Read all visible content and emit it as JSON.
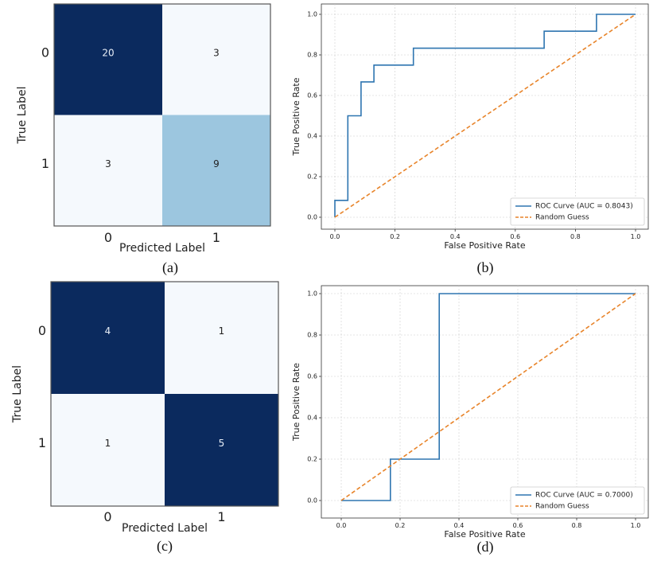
{
  "colors": {
    "dark": "#0b2a5e",
    "medium": "#9cc6df",
    "light": "#f5f9fd",
    "roc": "#2e75b0",
    "guess": "#e8842a",
    "grid": "#cccccc",
    "text_dark_cell": "#e8eef7",
    "text_light_cell": "#222222"
  },
  "chart_data": [
    {
      "type": "heatmap",
      "panel": "a",
      "caption": "(a)",
      "xlabel": "Predicted Label",
      "ylabel": "True Label",
      "x_ticks": [
        "0",
        "1"
      ],
      "y_ticks": [
        "0",
        "1"
      ],
      "matrix": [
        [
          20,
          3
        ],
        [
          3,
          9
        ]
      ]
    },
    {
      "type": "line",
      "panel": "b",
      "caption": "(b)",
      "xlabel": "False Positive Rate",
      "ylabel": "True Positive Rate",
      "xlim": [
        0,
        1
      ],
      "ylim": [
        0,
        1
      ],
      "x_ticks": [
        "0.0",
        "0.2",
        "0.4",
        "0.6",
        "0.8",
        "1.0"
      ],
      "y_ticks": [
        "0.0",
        "0.2",
        "0.4",
        "0.6",
        "0.8",
        "1.0"
      ],
      "grid": true,
      "legend_position": "bottom-right",
      "series": [
        {
          "name": "ROC Curve (AUC = 0.8043)",
          "style": "solid",
          "x": [
            0.0,
            0.0,
            0.043,
            0.043,
            0.087,
            0.087,
            0.13,
            0.13,
            0.261,
            0.261,
            0.696,
            0.696,
            0.87,
            0.87,
            1.0
          ],
          "y": [
            0.0,
            0.083,
            0.083,
            0.5,
            0.5,
            0.667,
            0.667,
            0.75,
            0.75,
            0.833,
            0.833,
            0.917,
            0.917,
            1.0,
            1.0
          ]
        },
        {
          "name": "Random Guess",
          "style": "dashed",
          "x": [
            0,
            1
          ],
          "y": [
            0,
            1
          ]
        }
      ]
    },
    {
      "type": "heatmap",
      "panel": "c",
      "caption": "(c)",
      "xlabel": "Predicted Label",
      "ylabel": "True Label",
      "x_ticks": [
        "0",
        "1"
      ],
      "y_ticks": [
        "0",
        "1"
      ],
      "matrix": [
        [
          4,
          1
        ],
        [
          1,
          5
        ]
      ]
    },
    {
      "type": "line",
      "panel": "d",
      "caption": "(d)",
      "xlabel": "False Positive Rate",
      "ylabel": "True Positive Rate",
      "xlim": [
        0,
        1
      ],
      "ylim": [
        0,
        1
      ],
      "x_ticks": [
        "0.0",
        "0.2",
        "0.4",
        "0.6",
        "0.8",
        "1.0"
      ],
      "y_ticks": [
        "0.0",
        "0.2",
        "0.4",
        "0.6",
        "0.8",
        "1.0"
      ],
      "grid": true,
      "legend_position": "bottom-right",
      "series": [
        {
          "name": "ROC Curve (AUC = 0.7000)",
          "style": "solid",
          "x": [
            0.0,
            0.167,
            0.167,
            0.333,
            0.333,
            1.0
          ],
          "y": [
            0.0,
            0.0,
            0.2,
            0.2,
            1.0,
            1.0
          ]
        },
        {
          "name": "Random Guess",
          "style": "dashed",
          "x": [
            0,
            1
          ],
          "y": [
            0,
            1
          ]
        }
      ]
    }
  ]
}
